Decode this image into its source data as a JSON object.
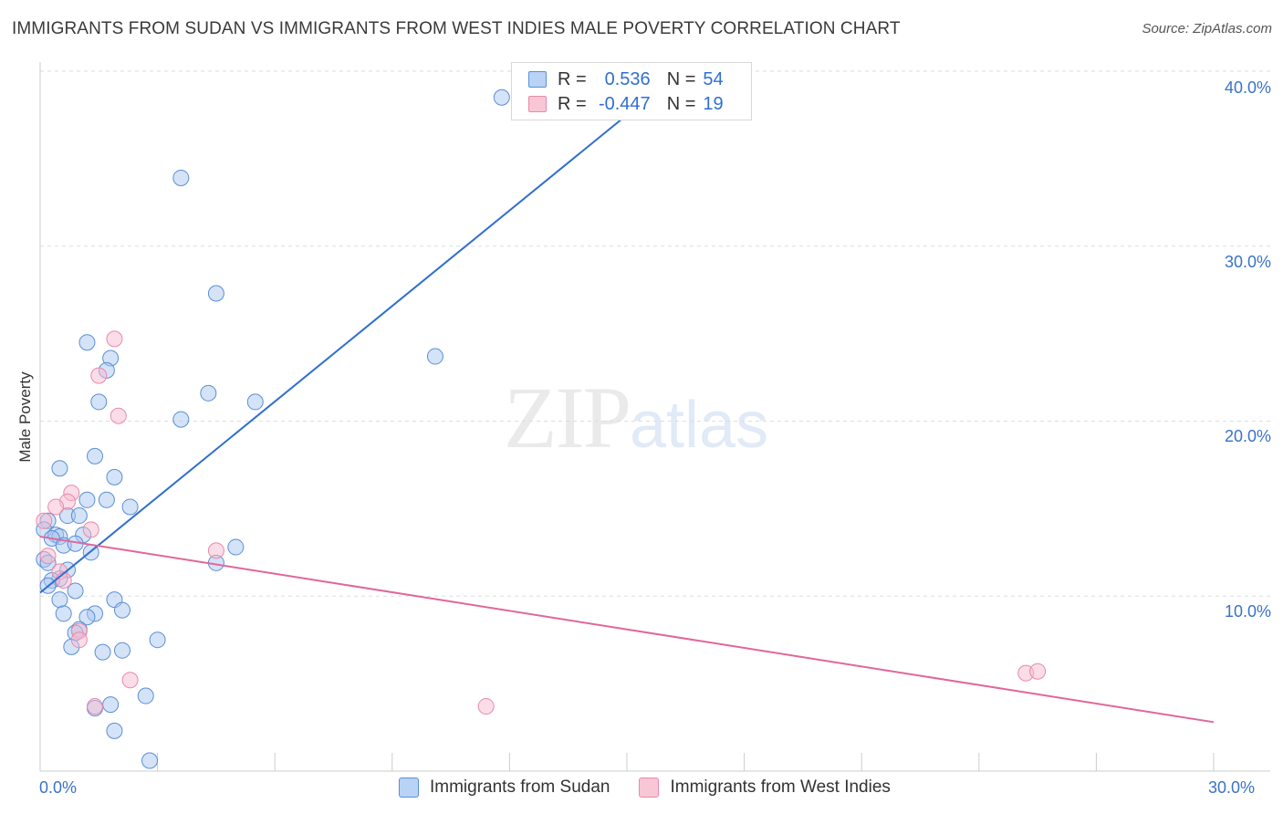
{
  "title": "IMMIGRANTS FROM SUDAN VS IMMIGRANTS FROM WEST INDIES MALE POVERTY CORRELATION CHART",
  "source": "Source: ZipAtlas.com",
  "watermark": {
    "zip": "ZIP",
    "atlas": "atlas"
  },
  "legend": {
    "r_label": "R =",
    "n_label": "N =",
    "series1": {
      "r": "0.536",
      "n": "54"
    },
    "series2": {
      "r": "-0.447",
      "n": "19"
    }
  },
  "colors": {
    "blue_fill": "#a9c8f0",
    "blue_stroke": "#5b8fd6",
    "blue_line": "#2f6fcf",
    "pink_fill": "#f7bcd0",
    "pink_stroke": "#e98aa8",
    "pink_line": "#e0679a",
    "grid": "#dddddd",
    "tick_text": "#3a72c8"
  },
  "chart_data": {
    "type": "scatter",
    "title": "IMMIGRANTS FROM SUDAN VS IMMIGRANTS FROM WEST INDIES MALE POVERTY CORRELATION CHART",
    "xlabel": "",
    "ylabel": "Male Poverty",
    "xlim": [
      0,
      30
    ],
    "ylim": [
      0,
      40
    ],
    "x_tick_labels": [
      "0.0%",
      "30.0%"
    ],
    "y_tick_labels": [
      "10.0%",
      "20.0%",
      "30.0%",
      "40.0%"
    ],
    "y_ticks": [
      10,
      20,
      30,
      40
    ],
    "series": [
      {
        "name": "Immigrants from Sudan",
        "color": "blue",
        "r": 0.536,
        "n": 54,
        "trend": {
          "x": [
            0.0,
            15.0
          ],
          "y": [
            10.2,
            37.5
          ]
        },
        "points": [
          [
            11.8,
            38.5
          ],
          [
            3.6,
            33.9
          ],
          [
            4.5,
            27.3
          ],
          [
            10.1,
            23.7
          ],
          [
            1.2,
            24.5
          ],
          [
            1.8,
            23.6
          ],
          [
            1.7,
            22.9
          ],
          [
            4.3,
            21.6
          ],
          [
            5.5,
            21.1
          ],
          [
            1.5,
            21.1
          ],
          [
            3.6,
            20.1
          ],
          [
            1.4,
            18.0
          ],
          [
            0.5,
            17.3
          ],
          [
            1.9,
            16.8
          ],
          [
            1.7,
            15.5
          ],
          [
            1.2,
            15.5
          ],
          [
            2.3,
            15.1
          ],
          [
            0.7,
            14.6
          ],
          [
            1.0,
            14.6
          ],
          [
            0.2,
            14.3
          ],
          [
            0.1,
            13.8
          ],
          [
            0.4,
            13.5
          ],
          [
            0.5,
            13.4
          ],
          [
            1.1,
            13.5
          ],
          [
            0.3,
            13.3
          ],
          [
            0.6,
            12.9
          ],
          [
            0.9,
            13.0
          ],
          [
            5.0,
            12.8
          ],
          [
            1.3,
            12.5
          ],
          [
            0.1,
            12.1
          ],
          [
            0.2,
            11.9
          ],
          [
            4.5,
            11.9
          ],
          [
            0.7,
            11.5
          ],
          [
            0.5,
            11.0
          ],
          [
            0.3,
            10.9
          ],
          [
            0.2,
            10.6
          ],
          [
            0.9,
            10.3
          ],
          [
            0.5,
            9.8
          ],
          [
            1.9,
            9.8
          ],
          [
            2.1,
            9.2
          ],
          [
            0.6,
            9.0
          ],
          [
            1.4,
            9.0
          ],
          [
            1.2,
            8.8
          ],
          [
            1.0,
            8.1
          ],
          [
            0.9,
            7.9
          ],
          [
            3.0,
            7.5
          ],
          [
            0.8,
            7.1
          ],
          [
            2.1,
            6.9
          ],
          [
            1.6,
            6.8
          ],
          [
            2.7,
            4.3
          ],
          [
            1.8,
            3.8
          ],
          [
            1.4,
            3.6
          ],
          [
            1.9,
            2.3
          ],
          [
            2.8,
            0.6
          ]
        ]
      },
      {
        "name": "Immigrants from West Indies",
        "color": "pink",
        "r": -0.447,
        "n": 19,
        "trend": {
          "x": [
            0.0,
            30.0
          ],
          "y": [
            13.4,
            2.8
          ]
        },
        "points": [
          [
            1.9,
            24.7
          ],
          [
            1.5,
            22.6
          ],
          [
            2.0,
            20.3
          ],
          [
            0.8,
            15.9
          ],
          [
            0.7,
            15.4
          ],
          [
            0.4,
            15.1
          ],
          [
            0.1,
            14.3
          ],
          [
            1.3,
            13.8
          ],
          [
            4.5,
            12.6
          ],
          [
            0.2,
            12.3
          ],
          [
            0.5,
            11.4
          ],
          [
            0.6,
            10.9
          ],
          [
            1.0,
            8.0
          ],
          [
            1.0,
            7.5
          ],
          [
            2.3,
            5.2
          ],
          [
            1.4,
            3.7
          ],
          [
            11.4,
            3.7
          ],
          [
            25.2,
            5.6
          ],
          [
            25.5,
            5.7
          ]
        ]
      }
    ]
  },
  "bottom_legend": [
    "Immigrants from Sudan",
    "Immigrants from West Indies"
  ]
}
